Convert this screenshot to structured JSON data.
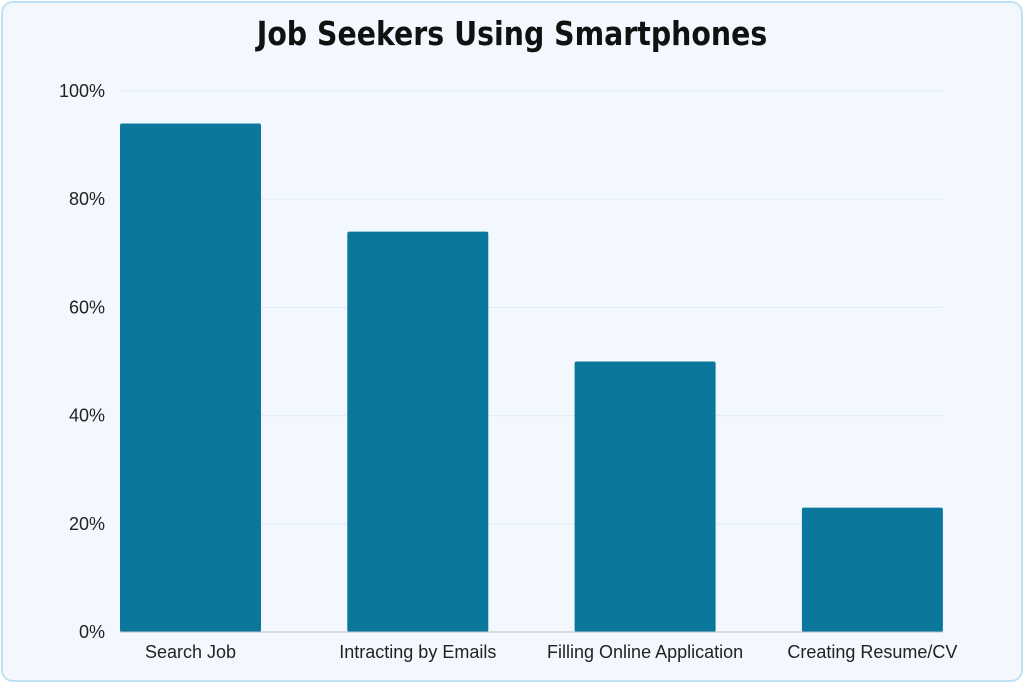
{
  "chart_data": {
    "type": "bar",
    "title": "Job Seekers Using Smartphones",
    "categories": [
      "Search Job",
      "Intracting by Emails",
      "Filling Online Application",
      "Creating Resume/CV"
    ],
    "values": [
      94,
      74,
      50,
      23
    ],
    "yticks": [
      "0%",
      "20%",
      "40%",
      "60%",
      "80%",
      "100%"
    ],
    "ylim": [
      0,
      100
    ],
    "grid": true,
    "bar_color": "#0b779c",
    "grid_color": "#e2ebf3",
    "axis_color": "#b8bec4"
  }
}
